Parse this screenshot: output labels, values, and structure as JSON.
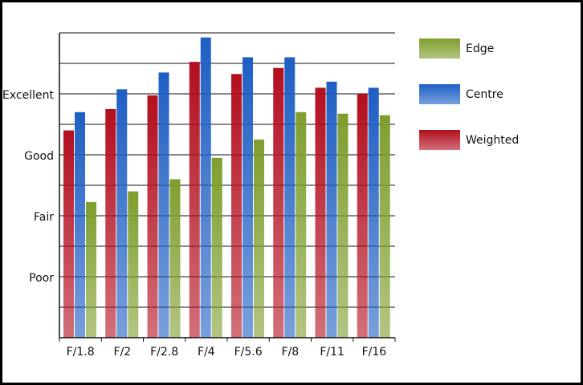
{
  "chart_data": {
    "type": "bar",
    "categories": [
      "F/1.8",
      "F/2",
      "F/2.8",
      "F/4",
      "F/5.6",
      "F/8",
      "F/11",
      "F/16"
    ],
    "series": [
      {
        "name": "Edge",
        "color": "#7f9e2e",
        "values": [
          4.45,
          4.8,
          5.2,
          5.9,
          6.5,
          7.4,
          7.35,
          7.3
        ]
      },
      {
        "name": "Centre",
        "color": "#1f5fc4",
        "values": [
          7.4,
          8.15,
          8.7,
          9.85,
          9.2,
          9.2,
          8.4,
          8.2
        ]
      },
      {
        "name": "Weighted",
        "color": "#b30f1f",
        "values": [
          6.8,
          7.5,
          7.95,
          9.05,
          8.65,
          8.85,
          8.2,
          8.0
        ]
      }
    ],
    "ylim": [
      0,
      10
    ],
    "yticks": [
      {
        "value": 2,
        "label": "Poor"
      },
      {
        "value": 4,
        "label": "Fair"
      },
      {
        "value": 6,
        "label": "Good"
      },
      {
        "value": 8,
        "label": "Excellent"
      }
    ],
    "minor_yticks": [
      1,
      3,
      5,
      7,
      9,
      10
    ],
    "grid": true,
    "legend": "right"
  }
}
